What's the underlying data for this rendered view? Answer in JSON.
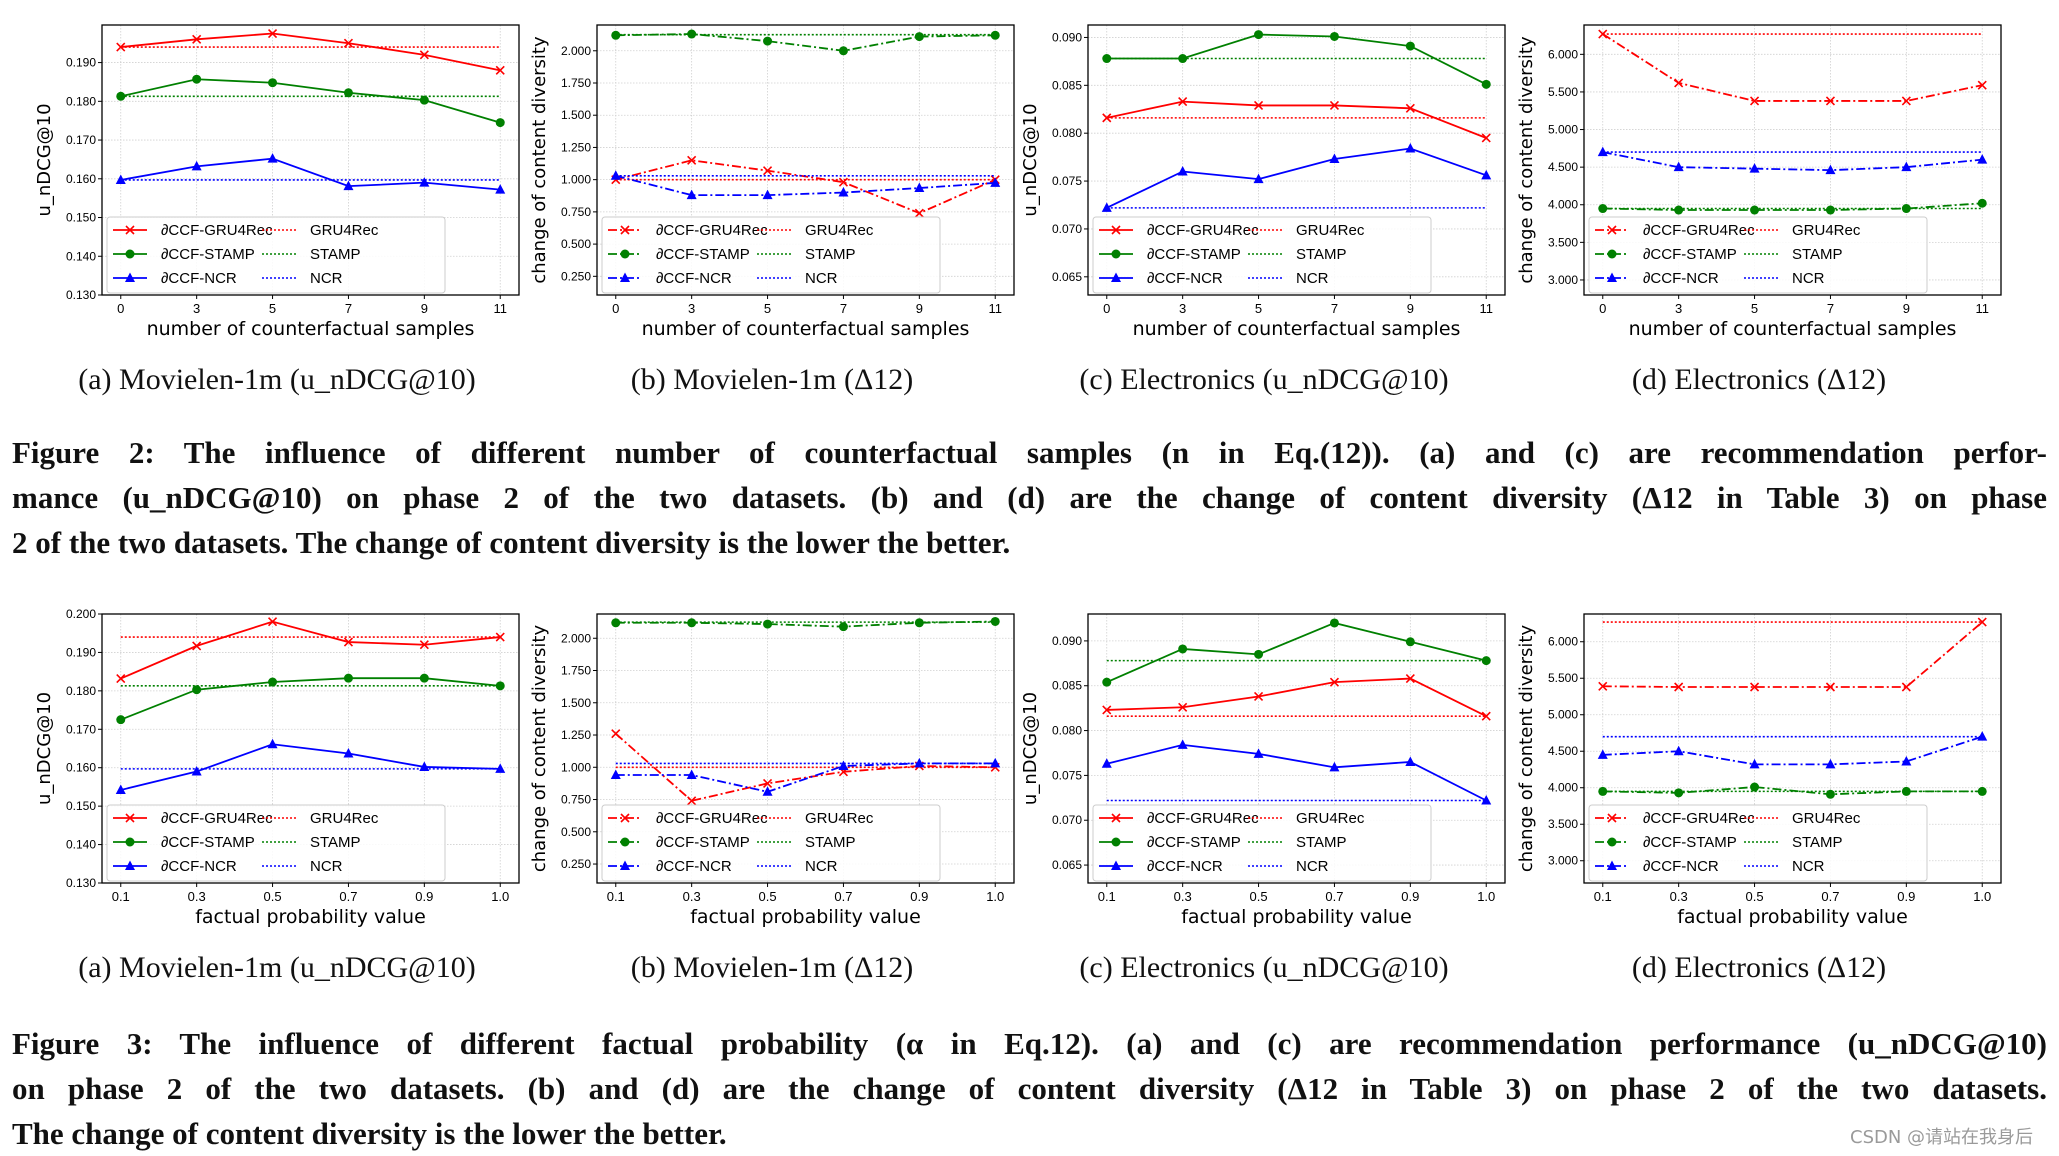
{
  "colors": {
    "gru": "#ff0000",
    "stamp": "#008000",
    "ncr": "#0000ff"
  },
  "legend": {
    "labels": [
      "∂CCF-GRU4Rec",
      "∂CCF-STAMP",
      "∂CCF-NCR",
      "GRU4Rec",
      "STAMP",
      "NCR"
    ],
    "placement": "lower-left"
  },
  "figure2": {
    "subcaptions": [
      "(a) Movielen-1m (u_nDCG@10)",
      "(b) Movielen-1m (Δ12)",
      "(c) Electronics (u_nDCG@10)",
      "(d) Electronics (Δ12)"
    ],
    "caption_lines": [
      "Figure 2: The influence of different number of counterfactual samples (n in Eq.(12)). (a) and (c) are recommendation perfor-",
      "mance (u_nDCG@10) on phase 2 of the two datasets. (b) and (d) are the change of content diversity (Δ12 in Table 3) on phase",
      "2 of the two datasets. The change of content diversity is the lower the better."
    ]
  },
  "figure3": {
    "subcaptions": [
      "(a) Movielen-1m (u_nDCG@10)",
      "(b) Movielen-1m (Δ12)",
      "(c) Electronics (u_nDCG@10)",
      "(d) Electronics (Δ12)"
    ],
    "caption_lines": [
      "Figure 3: The influence of different factual probability (α in Eq.12). (a) and (c) are recommendation performance (u_nDCG@10)",
      "on phase 2 of the two datasets. (b) and (d) are the change of content diversity (Δ12 in Table 3) on phase 2 of the two datasets.",
      "The change of content diversity is the lower the better."
    ]
  },
  "watermark": "CSDN @请站在我身后",
  "chart_data": [
    {
      "type": "line",
      "xlabel": "number of counterfactual samples",
      "ylabel": "u_nDCG@10",
      "categories": [
        "0",
        "3",
        "5",
        "7",
        "9",
        "11"
      ],
      "ylim": [
        0.13,
        0.1997
      ],
      "yticks": [
        0.13,
        0.14,
        0.15,
        0.16,
        0.17,
        0.18,
        0.19
      ],
      "grid": true,
      "style": "solid",
      "series": [
        {
          "name": "∂CCF-GRU4Rec",
          "values": [
            0.194,
            0.196,
            0.1975,
            0.195,
            0.192,
            0.188
          ],
          "baseline_name": "GRU4Rec",
          "baseline": 0.194
        },
        {
          "name": "∂CCF-STAMP",
          "values": [
            0.1813,
            0.1857,
            0.1848,
            0.1822,
            0.1803,
            0.1745
          ],
          "baseline_name": "STAMP",
          "baseline": 0.1813
        },
        {
          "name": "∂CCF-NCR",
          "values": [
            0.1597,
            0.1632,
            0.1652,
            0.1581,
            0.159,
            0.1572
          ],
          "baseline_name": "NCR",
          "baseline": 0.1597
        }
      ]
    },
    {
      "type": "line",
      "xlabel": "number of counterfactual samples",
      "ylabel": "change of content diversity",
      "categories": [
        "0",
        "3",
        "5",
        "7",
        "9",
        "11"
      ],
      "ylim": [
        0.105,
        2.2
      ],
      "yticks": [
        0.25,
        0.5,
        0.75,
        1.0,
        1.25,
        1.5,
        1.75,
        2.0
      ],
      "grid": true,
      "style": "dashdot",
      "series": [
        {
          "name": "∂CCF-GRU4Rec",
          "values": [
            1.0,
            1.15,
            1.07,
            0.98,
            0.74,
            1.0
          ],
          "baseline_name": "GRU4Rec",
          "baseline": 1.0
        },
        {
          "name": "∂CCF-STAMP",
          "values": [
            2.12,
            2.13,
            2.075,
            2.0,
            2.11,
            2.12
          ],
          "baseline_name": "STAMP",
          "baseline": 2.125
        },
        {
          "name": "∂CCF-NCR",
          "values": [
            1.03,
            0.88,
            0.88,
            0.9,
            0.935,
            0.975
          ],
          "baseline_name": "NCR",
          "baseline": 1.03
        }
      ]
    },
    {
      "type": "line",
      "xlabel": "number of counterfactual samples",
      "ylabel": "u_nDCG@10",
      "categories": [
        "0",
        "3",
        "5",
        "7",
        "9",
        "11"
      ],
      "ylim": [
        0.0631,
        0.0913
      ],
      "yticks": [
        0.065,
        0.07,
        0.075,
        0.08,
        0.085,
        0.09
      ],
      "grid": true,
      "style": "solid",
      "series": [
        {
          "name": "∂CCF-GRU4Rec",
          "values": [
            0.0816,
            0.0833,
            0.0829,
            0.0829,
            0.0826,
            0.0795
          ],
          "baseline_name": "GRU4Rec",
          "baseline": 0.0816
        },
        {
          "name": "∂CCF-STAMP",
          "values": [
            0.0878,
            0.0878,
            0.0903,
            0.0901,
            0.0891,
            0.0851
          ],
          "baseline_name": "STAMP",
          "baseline": 0.0878
        },
        {
          "name": "∂CCF-NCR",
          "values": [
            0.0722,
            0.076,
            0.0752,
            0.0773,
            0.0784,
            0.0756
          ],
          "baseline_name": "NCR",
          "baseline": 0.0722
        }
      ]
    },
    {
      "type": "line",
      "xlabel": "number of counterfactual samples",
      "ylabel": "change of content diversity",
      "categories": [
        "0",
        "3",
        "5",
        "7",
        "9",
        "11"
      ],
      "ylim": [
        2.8,
        6.39
      ],
      "yticks": [
        3.0,
        3.5,
        4.0,
        4.5,
        5.0,
        5.5,
        6.0
      ],
      "grid": true,
      "style": "dashdot",
      "series": [
        {
          "name": "∂CCF-GRU4Rec",
          "values": [
            6.27,
            5.62,
            5.38,
            5.38,
            5.38,
            5.59
          ],
          "baseline_name": "GRU4Rec",
          "baseline": 6.27
        },
        {
          "name": "∂CCF-STAMP",
          "values": [
            3.95,
            3.93,
            3.93,
            3.93,
            3.95,
            4.02
          ],
          "baseline_name": "STAMP",
          "baseline": 3.95
        },
        {
          "name": "∂CCF-NCR",
          "values": [
            4.7,
            4.5,
            4.48,
            4.46,
            4.5,
            4.6
          ],
          "baseline_name": "NCR",
          "baseline": 4.7
        }
      ]
    },
    {
      "type": "line",
      "xlabel": "factual probability value",
      "ylabel": "u_nDCG@10",
      "categories": [
        "0.1",
        "0.3",
        "0.5",
        "0.7",
        "0.9",
        "1.0"
      ],
      "ylim": [
        0.13,
        0.2
      ],
      "yticks": [
        0.13,
        0.14,
        0.15,
        0.16,
        0.17,
        0.18,
        0.19,
        0.2
      ],
      "grid": true,
      "style": "solid",
      "series": [
        {
          "name": "∂CCF-GRU4Rec",
          "values": [
            0.1832,
            0.1917,
            0.198,
            0.1927,
            0.192,
            0.194
          ],
          "baseline_name": "GRU4Rec",
          "baseline": 0.194
        },
        {
          "name": "∂CCF-STAMP",
          "values": [
            0.1725,
            0.1803,
            0.1823,
            0.1833,
            0.1833,
            0.1813
          ],
          "baseline_name": "STAMP",
          "baseline": 0.1813
        },
        {
          "name": "∂CCF-NCR",
          "values": [
            0.1542,
            0.159,
            0.1661,
            0.1637,
            0.1602,
            0.1597
          ],
          "baseline_name": "NCR",
          "baseline": 0.1597
        }
      ]
    },
    {
      "type": "line",
      "xlabel": "factual probability value",
      "ylabel": "change of content diversity",
      "categories": [
        "0.1",
        "0.3",
        "0.5",
        "0.7",
        "0.9",
        "1.0"
      ],
      "ylim": [
        0.103,
        2.188
      ],
      "yticks": [
        0.25,
        0.5,
        0.75,
        1.0,
        1.25,
        1.5,
        1.75,
        2.0
      ],
      "grid": true,
      "style": "dashdot",
      "series": [
        {
          "name": "∂CCF-GRU4Rec",
          "values": [
            1.26,
            0.74,
            0.875,
            0.965,
            1.01,
            1.0
          ],
          "baseline_name": "GRU4Rec",
          "baseline": 1.0
        },
        {
          "name": "∂CCF-STAMP",
          "values": [
            2.12,
            2.12,
            2.11,
            2.09,
            2.12,
            2.13
          ],
          "baseline_name": "STAMP",
          "baseline": 2.125
        },
        {
          "name": "∂CCF-NCR",
          "values": [
            0.94,
            0.94,
            0.81,
            1.01,
            1.03,
            1.03
          ],
          "baseline_name": "NCR",
          "baseline": 1.03
        }
      ]
    },
    {
      "type": "line",
      "xlabel": "factual probability value",
      "ylabel": "u_nDCG@10",
      "categories": [
        "0.1",
        "0.3",
        "0.5",
        "0.7",
        "0.9",
        "1.0"
      ],
      "ylim": [
        0.063,
        0.093
      ],
      "yticks": [
        0.065,
        0.07,
        0.075,
        0.08,
        0.085,
        0.09
      ],
      "grid": true,
      "style": "solid",
      "series": [
        {
          "name": "∂CCF-GRU4Rec",
          "values": [
            0.0823,
            0.0826,
            0.0838,
            0.0854,
            0.0858,
            0.0816
          ],
          "baseline_name": "GRU4Rec",
          "baseline": 0.0816
        },
        {
          "name": "∂CCF-STAMP",
          "values": [
            0.0854,
            0.0891,
            0.0885,
            0.092,
            0.0899,
            0.0878
          ],
          "baseline_name": "STAMP",
          "baseline": 0.0878
        },
        {
          "name": "∂CCF-NCR",
          "values": [
            0.0763,
            0.0784,
            0.0774,
            0.0759,
            0.0765,
            0.0722
          ],
          "baseline_name": "NCR",
          "baseline": 0.0722
        }
      ]
    },
    {
      "type": "line",
      "xlabel": "factual probability value",
      "ylabel": "change of content diversity",
      "categories": [
        "0.1",
        "0.3",
        "0.5",
        "0.7",
        "0.9",
        "1.0"
      ],
      "ylim": [
        2.695,
        6.38
      ],
      "yticks": [
        3.0,
        3.5,
        4.0,
        4.5,
        5.0,
        5.5,
        6.0
      ],
      "grid": true,
      "style": "dashdot",
      "series": [
        {
          "name": "∂CCF-GRU4Rec",
          "values": [
            5.39,
            5.38,
            5.38,
            5.38,
            5.38,
            6.27
          ],
          "baseline_name": "GRU4Rec",
          "baseline": 6.27
        },
        {
          "name": "∂CCF-STAMP",
          "values": [
            3.95,
            3.93,
            4.01,
            3.91,
            3.95,
            3.95
          ],
          "baseline_name": "STAMP",
          "baseline": 3.95
        },
        {
          "name": "∂CCF-NCR",
          "values": [
            4.45,
            4.5,
            4.32,
            4.32,
            4.36,
            4.7
          ],
          "baseline_name": "NCR",
          "baseline": 4.7
        }
      ]
    }
  ]
}
